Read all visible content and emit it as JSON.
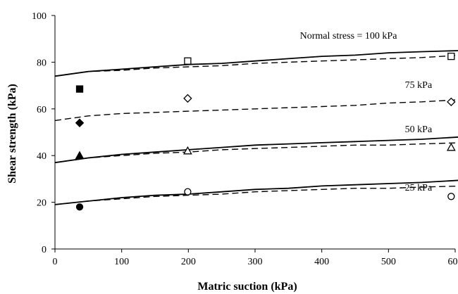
{
  "chart_data": {
    "type": "scatter",
    "xlabel": "Matric suction (kPa)",
    "ylabel": "Shear strength (kPa)",
    "xlim": [
      0,
      600
    ],
    "ylim": [
      0,
      100
    ],
    "x_ticks": [
      "0",
      "100",
      "200",
      "300",
      "400",
      "500",
      "600"
    ],
    "y_ticks": [
      "0",
      "20",
      "40",
      "60",
      "80",
      "100"
    ],
    "grid": false,
    "legend": "none",
    "annotations": [
      {
        "text": "Normal stress = 100 kPa",
        "x": 440,
        "y": 90
      },
      {
        "text": "75 kPa",
        "x": 545,
        "y": 69
      },
      {
        "text": "50 kPa",
        "x": 545,
        "y": 50
      },
      {
        "text": "25 kPa",
        "x": 545,
        "y": 25
      }
    ],
    "series": [
      {
        "stress": "100 kPa",
        "marker": "square-filled",
        "points": [
          [
            37,
            68.5
          ]
        ]
      },
      {
        "stress": "100 kPa",
        "marker": "square-open",
        "points": [
          [
            199,
            80.5
          ],
          [
            594,
            82.5
          ]
        ]
      },
      {
        "stress": "75 kPa",
        "marker": "diamond-filled",
        "points": [
          [
            37,
            54
          ]
        ]
      },
      {
        "stress": "75 kPa",
        "marker": "diamond-open",
        "points": [
          [
            199,
            64.5
          ],
          [
            594,
            63
          ]
        ]
      },
      {
        "stress": "50 kPa",
        "marker": "triangle-filled",
        "points": [
          [
            37,
            40
          ]
        ]
      },
      {
        "stress": "50 kPa",
        "marker": "triangle-open",
        "points": [
          [
            199,
            42
          ],
          [
            594,
            43.5
          ]
        ]
      },
      {
        "stress": "25 kPa",
        "marker": "circle-filled",
        "points": [
          [
            37,
            18
          ]
        ]
      },
      {
        "stress": "25 kPa",
        "marker": "circle-open",
        "points": [
          [
            199,
            24.5
          ],
          [
            594,
            22.5
          ]
        ]
      }
    ],
    "curves": [
      {
        "stress": "100 kPa",
        "style": "solid",
        "x": [
          0,
          50,
          100,
          150,
          200,
          250,
          300,
          350,
          400,
          450,
          500,
          550,
          610
        ],
        "y": [
          74,
          76,
          77,
          78,
          79,
          79.5,
          80.5,
          81.5,
          82.5,
          83,
          84,
          84.5,
          85
        ]
      },
      {
        "stress": "100 kPa",
        "style": "dashed",
        "x": [
          0,
          50,
          100,
          150,
          200,
          250,
          300,
          350,
          400,
          450,
          500,
          550,
          610
        ],
        "y": [
          74,
          76,
          76.5,
          77.5,
          78,
          78.5,
          79.5,
          80,
          80.5,
          81,
          81.5,
          82,
          83
        ]
      },
      {
        "stress": "75 kPa",
        "style": "dashed",
        "x": [
          0,
          50,
          100,
          150,
          200,
          250,
          300,
          350,
          400,
          450,
          500,
          550,
          610
        ],
        "y": [
          55,
          57,
          58,
          58.5,
          59,
          59.5,
          60,
          60.5,
          61,
          61.5,
          62.5,
          63,
          64
        ]
      },
      {
        "stress": "50 kPa",
        "style": "solid",
        "x": [
          0,
          50,
          100,
          150,
          200,
          250,
          300,
          350,
          400,
          450,
          500,
          550,
          610
        ],
        "y": [
          37,
          39,
          40.5,
          41.5,
          42.5,
          43.5,
          44.5,
          45,
          45.5,
          46,
          46.5,
          47,
          48
        ]
      },
      {
        "stress": "50 kPa",
        "style": "dashed",
        "x": [
          0,
          50,
          100,
          150,
          200,
          250,
          300,
          350,
          400,
          450,
          500,
          550,
          610
        ],
        "y": [
          37,
          39,
          40,
          41,
          41.5,
          42.5,
          43,
          43.5,
          44,
          44.5,
          44.5,
          45,
          45.5
        ]
      },
      {
        "stress": "25 kPa",
        "style": "solid",
        "x": [
          0,
          50,
          100,
          150,
          200,
          250,
          300,
          350,
          400,
          450,
          500,
          550,
          610
        ],
        "y": [
          19,
          20.5,
          22,
          23,
          23.5,
          24.5,
          25.5,
          26,
          27,
          27.5,
          28,
          28.5,
          29.5
        ]
      },
      {
        "stress": "25 kPa",
        "style": "dashed",
        "x": [
          0,
          50,
          100,
          150,
          200,
          250,
          300,
          350,
          400,
          450,
          500,
          550,
          610
        ],
        "y": [
          19,
          20.5,
          21.5,
          22.5,
          23,
          23.5,
          24.5,
          25,
          25.5,
          26,
          26,
          26.5,
          27
        ]
      }
    ]
  }
}
